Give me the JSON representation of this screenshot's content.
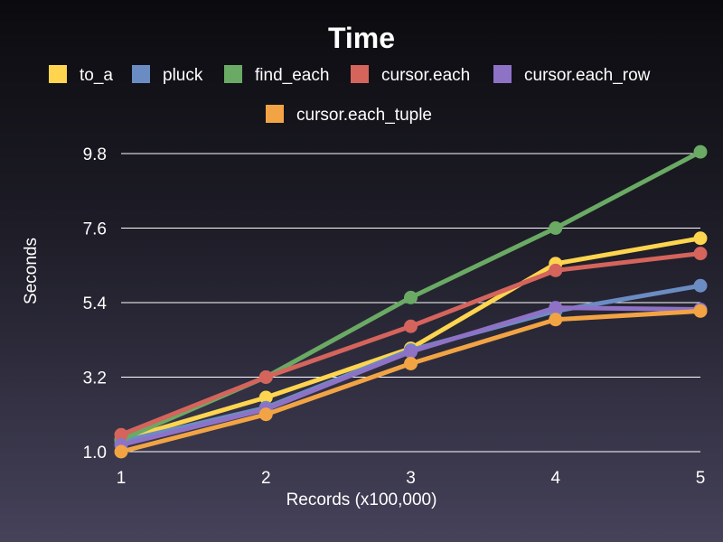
{
  "chart_data": {
    "type": "line",
    "title": "Time",
    "xlabel": "Records (x100,000)",
    "ylabel": "Seconds",
    "x": [
      1,
      2,
      3,
      4,
      5
    ],
    "xticks": [
      "1",
      "2",
      "3",
      "4",
      "5"
    ],
    "yticks": [
      "1.0",
      "3.2",
      "5.4",
      "7.6",
      "9.8"
    ],
    "ytick_values": [
      1.0,
      3.2,
      5.4,
      7.6,
      9.8
    ],
    "xlim": [
      1,
      5
    ],
    "ylim": [
      1.0,
      9.8
    ],
    "grid": true,
    "legend_position": "top",
    "series": [
      {
        "name": "to_a",
        "color": "#ffd54f",
        "values": [
          1.35,
          2.6,
          4.05,
          6.55,
          7.3
        ]
      },
      {
        "name": "pluck",
        "color": "#6b8cc3",
        "values": [
          1.3,
          2.3,
          4.0,
          5.15,
          5.9
        ]
      },
      {
        "name": "find_each",
        "color": "#6aaa64",
        "values": [
          1.35,
          3.2,
          5.55,
          7.6,
          9.85
        ]
      },
      {
        "name": "cursor.each",
        "color": "#d4645c",
        "values": [
          1.5,
          3.2,
          4.7,
          6.35,
          6.85
        ]
      },
      {
        "name": "cursor.each_row",
        "color": "#8e72c6",
        "values": [
          1.2,
          2.25,
          3.95,
          5.25,
          5.2
        ]
      },
      {
        "name": "cursor.each_tuple",
        "color": "#f2a444",
        "values": [
          1.0,
          2.1,
          3.6,
          4.9,
          5.15
        ]
      }
    ]
  }
}
